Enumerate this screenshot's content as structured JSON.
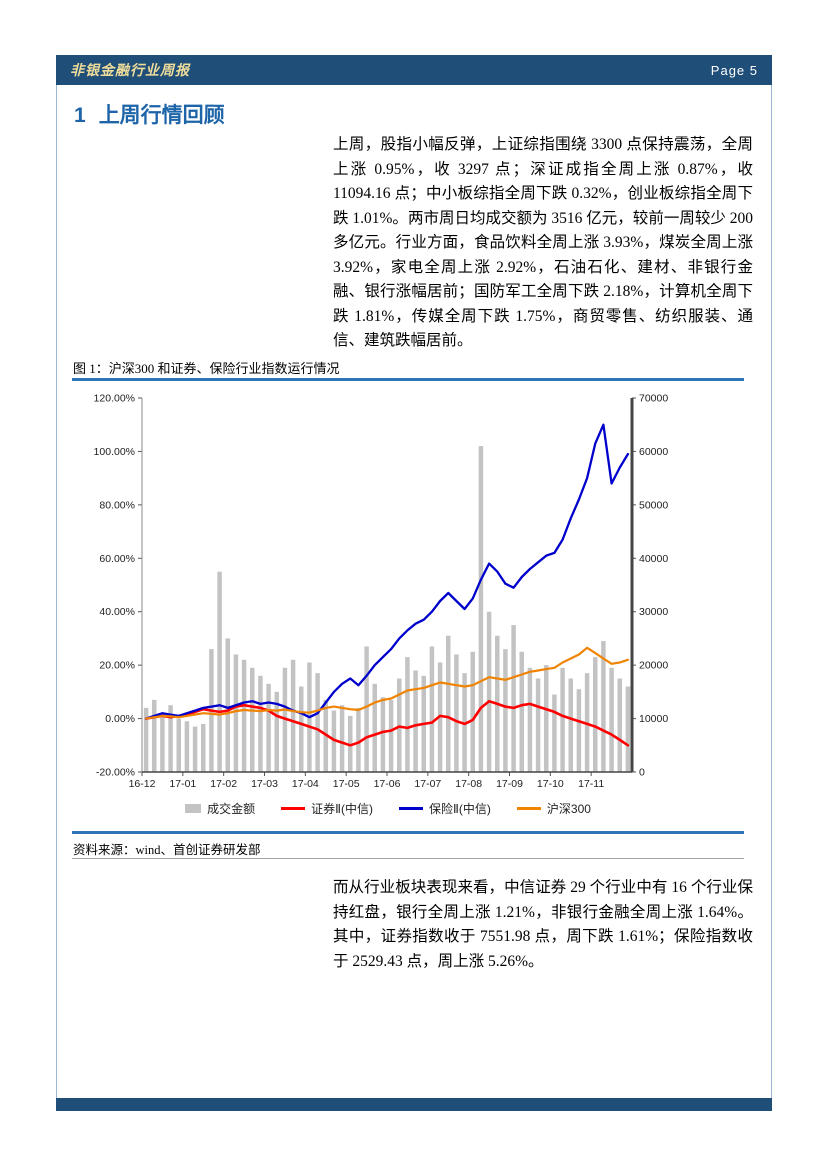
{
  "doc": {
    "header": {
      "title": "非银金融行业周报",
      "page_label": "Page 5"
    },
    "section_heading": {
      "number": "1",
      "title": "上周行情回顾"
    },
    "paragraph_1": "上周，股指小幅反弹，上证综指围绕 3300 点保持震荡，全周上涨 0.95%，收 3297 点；深证成指全周上涨 0.87%，收 11094.16 点；中小板综指全周下跌 0.32%，创业板综指全周下跌 1.01%。两市周日均成交额为 3516 亿元，较前一周较少 200 多亿元。行业方面，食品饮料全周上涨 3.93%，煤炭全周上涨 3.92%，家电全周上涨 2.92%，石油石化、建材、非银行金融、银行涨幅居前；国防军工全周下跌 2.18%，计算机全周下跌 1.81%，传媒全周下跌 1.75%，商贸零售、纺织服装、通信、建筑跌幅居前。",
    "figure_caption": "图 1：沪深300 和证券、保险行业指数运行情况",
    "source_note": "资料来源：wind、首创证券研发部",
    "paragraph_2": "而从行业板块表现来看，中信证券 29 个行业中有 16 个行业保持红盘，银行全周上涨 1.21%，非银行金融全周上涨 1.64%。其中，证券指数收于 7551.98 点，周下跌 1.61%；保险指数收于 2529.43 点，周上涨 5.26%。"
  },
  "colors": {
    "header_bar": "#1F4E79",
    "header_title_text": "#EDDC9A",
    "section_heading_text": "#1E64A8",
    "accent_rule": "#2E75B6",
    "bar_series": "#C3C3C3",
    "securities_line": "#FF0000",
    "insurance_line": "#0000CC",
    "hs300_line": "#F08300"
  },
  "chart_data": {
    "type": "bar",
    "subtype": "combo-bar-line-dual-axis",
    "title": "沪深300 和证券、保险行业指数运行情况",
    "grid": false,
    "legend_position": "bottom",
    "points_per_month": 5,
    "x_labels": [
      "16-12",
      "17-01",
      "17-02",
      "17-03",
      "17-04",
      "17-05",
      "17-06",
      "17-07",
      "17-08",
      "17-09",
      "17-10",
      "17-11"
    ],
    "left_axis": {
      "min": -20,
      "max": 120,
      "format": "percent",
      "tick_labels": [
        "120.00%",
        "100.00%",
        "80.00%",
        "60.00%",
        "40.00%",
        "20.00%",
        "0.00%",
        "-20.00%"
      ]
    },
    "right_axis": {
      "min": 0,
      "max": 70000,
      "tick_labels": [
        "70000",
        "60000",
        "50000",
        "40000",
        "30000",
        "20000",
        "10000",
        "0"
      ]
    },
    "bars": {
      "name": "成交金额",
      "axis": "right",
      "color": "#C3C3C3",
      "values": [
        12000,
        13500,
        11000,
        12500,
        10000,
        9500,
        8500,
        9000,
        23000,
        37500,
        25000,
        22000,
        21000,
        19500,
        18000,
        16500,
        15000,
        19500,
        21000,
        16000,
        20500,
        18500,
        13500,
        11500,
        12500,
        10500,
        12000,
        23500,
        16500,
        14000,
        13500,
        17500,
        21500,
        19000,
        18000,
        23500,
        20500,
        25500,
        22000,
        18500,
        22500,
        61000,
        30000,
        25500,
        23000,
        27500,
        22500,
        19500,
        17500,
        20000,
        14500,
        19500,
        17500,
        15500,
        18500,
        21500,
        24500,
        19500,
        17500,
        16000
      ]
    },
    "series": [
      {
        "name": "证券Ⅱ(中信)",
        "axis": "left",
        "color": "#FF0000",
        "stroke_width": 2.6,
        "values": [
          0,
          0.5,
          1,
          0.5,
          1,
          1.5,
          2.5,
          3.5,
          3,
          2.5,
          3,
          4.5,
          5,
          4.5,
          4,
          3,
          1,
          0,
          -1,
          -2,
          -3,
          -4,
          -6,
          -8,
          -9,
          -10,
          -9,
          -7,
          -6,
          -5,
          -4.5,
          -3,
          -3.5,
          -2.5,
          -2,
          -1.5,
          1,
          0.5,
          -1,
          -2,
          -0.5,
          4,
          6.5,
          5.5,
          4.5,
          4,
          5,
          5.5,
          4.5,
          3.5,
          2.5,
          1,
          0,
          -1,
          -2,
          -3,
          -4.5,
          -6,
          -8,
          -10
        ]
      },
      {
        "name": "保险Ⅱ(中信)",
        "axis": "left",
        "color": "#0000CC",
        "stroke_width": 2.3,
        "values": [
          0,
          1,
          2,
          1.5,
          1,
          2,
          3,
          4,
          4.5,
          5,
          4,
          5,
          6,
          6.5,
          5.5,
          6,
          5.5,
          4.5,
          3,
          2,
          0.5,
          2,
          6,
          10,
          13,
          15,
          12.5,
          16,
          20,
          23,
          26,
          30,
          33,
          35.5,
          37,
          40,
          44,
          47,
          44,
          41,
          45,
          52,
          58,
          55,
          50.5,
          49,
          53,
          56,
          58.5,
          61,
          62,
          67,
          75,
          82,
          90,
          103,
          110,
          88,
          94,
          99
        ]
      },
      {
        "name": "沪深300",
        "axis": "left",
        "color": "#F08300",
        "stroke_width": 2.2,
        "values": [
          0,
          0.5,
          1,
          0.8,
          0.5,
          1,
          1.5,
          2,
          1.8,
          1.5,
          2,
          2.8,
          3.2,
          3,
          2.8,
          3.2,
          3,
          3.4,
          2.8,
          2.4,
          2.2,
          3,
          4,
          4.5,
          4,
          3.5,
          3.2,
          4.5,
          6,
          7,
          7.5,
          9,
          10.5,
          11,
          11.5,
          12.5,
          13.5,
          13,
          12.5,
          12,
          12.5,
          14,
          15.5,
          15,
          14.5,
          15.5,
          16.5,
          17.5,
          18,
          18.5,
          19,
          21,
          22.5,
          24,
          26.5,
          24.5,
          22.5,
          20.5,
          21,
          22
        ]
      }
    ]
  }
}
